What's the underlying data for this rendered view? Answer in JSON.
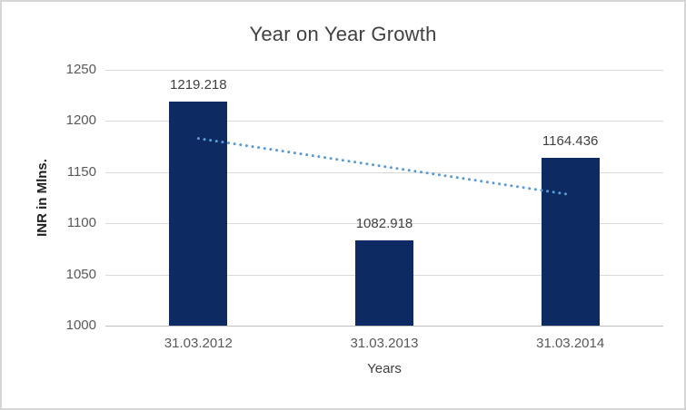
{
  "chart_data": {
    "type": "bar",
    "title": "Year on Year Growth",
    "xlabel": "Years",
    "ylabel": "INR in Mlns.",
    "categories": [
      "31.03.2012",
      "31.03.2013",
      "31.03.2014"
    ],
    "values": [
      1219.218,
      1082.918,
      1164.436
    ],
    "ylim": [
      1000,
      1250
    ],
    "yticks": [
      1000,
      1050,
      1100,
      1150,
      1200,
      1250
    ],
    "grid": true,
    "legend": "none",
    "bar_color": "#0d2a63",
    "gridline_color": "#d9d9d9",
    "axis_line_color": "#bfbfbf",
    "title_color": "#404040",
    "tick_label_color": "#595959",
    "trendline": {
      "style": "dotted",
      "color": "#5b9bd5",
      "start_value": 1183,
      "end_value": 1128,
      "span": "first-category-center to last-category-center"
    }
  }
}
